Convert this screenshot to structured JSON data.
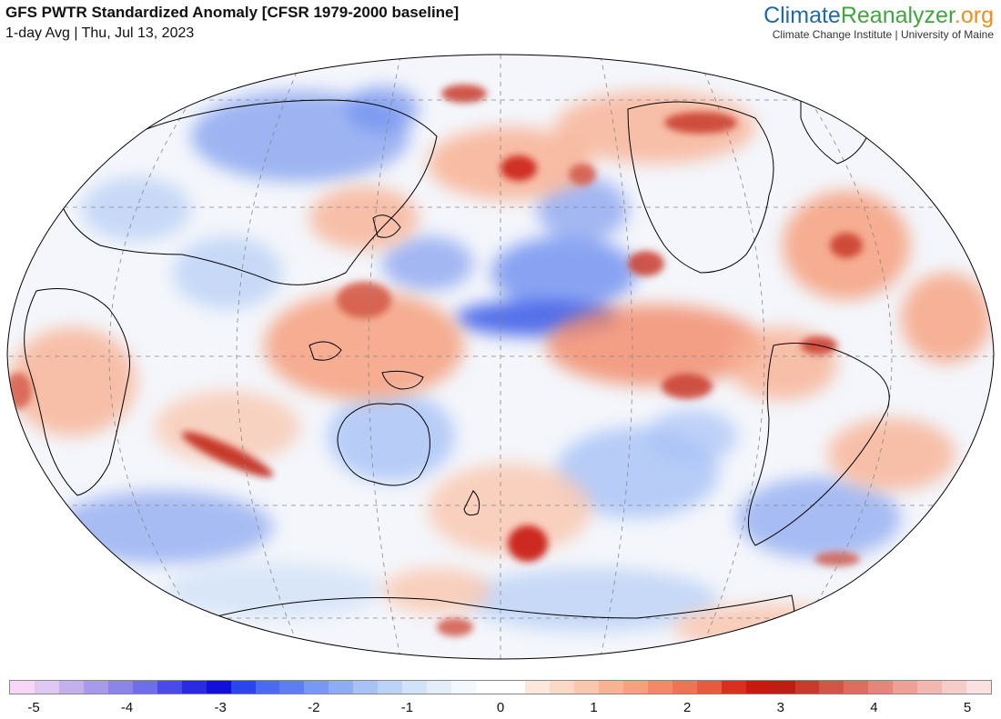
{
  "header": {
    "title": "GFS PWTR Standardized Anomaly [CFSR 1979-2000 baseline]",
    "subtitle": "1-day Avg | Thu, Jul 13, 2023"
  },
  "brand": {
    "name_part1": "Climate",
    "name_part2": "Reanalyzer",
    "name_part3": ".org",
    "tagline": "Climate Change Institute | University of Maine"
  },
  "legend": {
    "ticks": [
      "-5",
      "-4",
      "-3",
      "-2",
      "-1",
      "0",
      "1",
      "2",
      "3",
      "4",
      "5"
    ],
    "colors": [
      "#f8d6f8",
      "#e0c8f0",
      "#c4b0ec",
      "#a89ae8",
      "#8c84e6",
      "#6e6ee6",
      "#4a4ae8",
      "#2a2ae2",
      "#1010d8",
      "#2a44ee",
      "#4a6af0",
      "#5c7ef0",
      "#7898f4",
      "#8eacf4",
      "#a8c2f6",
      "#bcd2f6",
      "#d2e2f8",
      "#e4eefa",
      "#f2f8fd",
      "#ffffff",
      "#ffffff",
      "#fde8de",
      "#fcd8c6",
      "#fac6ae",
      "#f8b294",
      "#f6a07e",
      "#f28a68",
      "#ee7456",
      "#e65a40",
      "#d8301e",
      "#c81810",
      "#be1e12",
      "#c83a2a",
      "#d25646",
      "#dc6e60",
      "#e4867a",
      "#eca096",
      "#f2b8b0",
      "#f6ccc8",
      "#fae0de"
    ]
  },
  "map": {
    "projection": "Robinson (Pacific-centered)",
    "colors": {
      "background": "#ffffff",
      "coastline": "#000000",
      "graticule": "#888888",
      "warm": "#e65a40",
      "warm_strong": "#be1e12",
      "cool": "#6e8ef0",
      "cool_strong": "#2a44ee"
    }
  }
}
